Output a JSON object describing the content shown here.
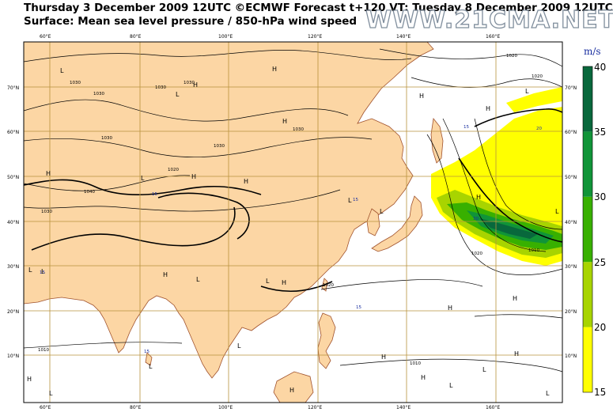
{
  "header": {
    "title_line1": "Thursday 3 December 2009 12UTC ©ECMWF Forecast t+120 VT: Tuesday 8 December 2009 12UTC",
    "title_line2": "Surface: Mean sea level pressure / 850-hPa wind speed",
    "watermark": "WWW.21CMA.NET"
  },
  "map": {
    "lon_labels": [
      "60°E",
      "80°E",
      "100°E",
      "120°E",
      "140°E",
      "160°E"
    ],
    "lat_labels": [
      "70°N",
      "60°N",
      "50°N",
      "40°N",
      "30°N",
      "20°N",
      "10°N"
    ],
    "isobars": [
      "1030",
      "1030",
      "1030",
      "1030",
      "1030",
      "1030",
      "1030",
      "1040",
      "1030",
      "1020",
      "1020",
      "1020",
      "1020",
      "1010",
      "1010",
      "1010",
      "1020"
    ],
    "pressure_centers": [
      "L",
      "L",
      "H",
      "H",
      "H",
      "L",
      "H",
      "L",
      "L",
      "H",
      "H",
      "L",
      "L",
      "L",
      "H",
      "H",
      "L",
      "H",
      "H",
      "H",
      "L",
      "L",
      "H",
      "H",
      "L",
      "L",
      "L",
      "L",
      "H",
      "H",
      "H",
      "L",
      "H",
      "L",
      "H"
    ],
    "wind_labels": [
      "15",
      "20",
      "15",
      "15",
      "30",
      "15",
      "15",
      "15"
    ]
  },
  "colorbar": {
    "units": "m/s",
    "labels": [
      "40",
      "35",
      "30",
      "25",
      "20",
      "15"
    ],
    "bands": [
      {
        "from": 15,
        "to": 20,
        "color": "#ffff00"
      },
      {
        "from": 20,
        "to": 25,
        "color": "#a8d400"
      },
      {
        "from": 25,
        "to": 30,
        "color": "#38b000"
      },
      {
        "from": 30,
        "to": 35,
        "color": "#109438"
      },
      {
        "from": 35,
        "to": 40,
        "color": "#08683c"
      }
    ]
  },
  "colors": {
    "land": "#fcd6a4",
    "grid": "#b8923c",
    "coast": "#a0522d"
  }
}
